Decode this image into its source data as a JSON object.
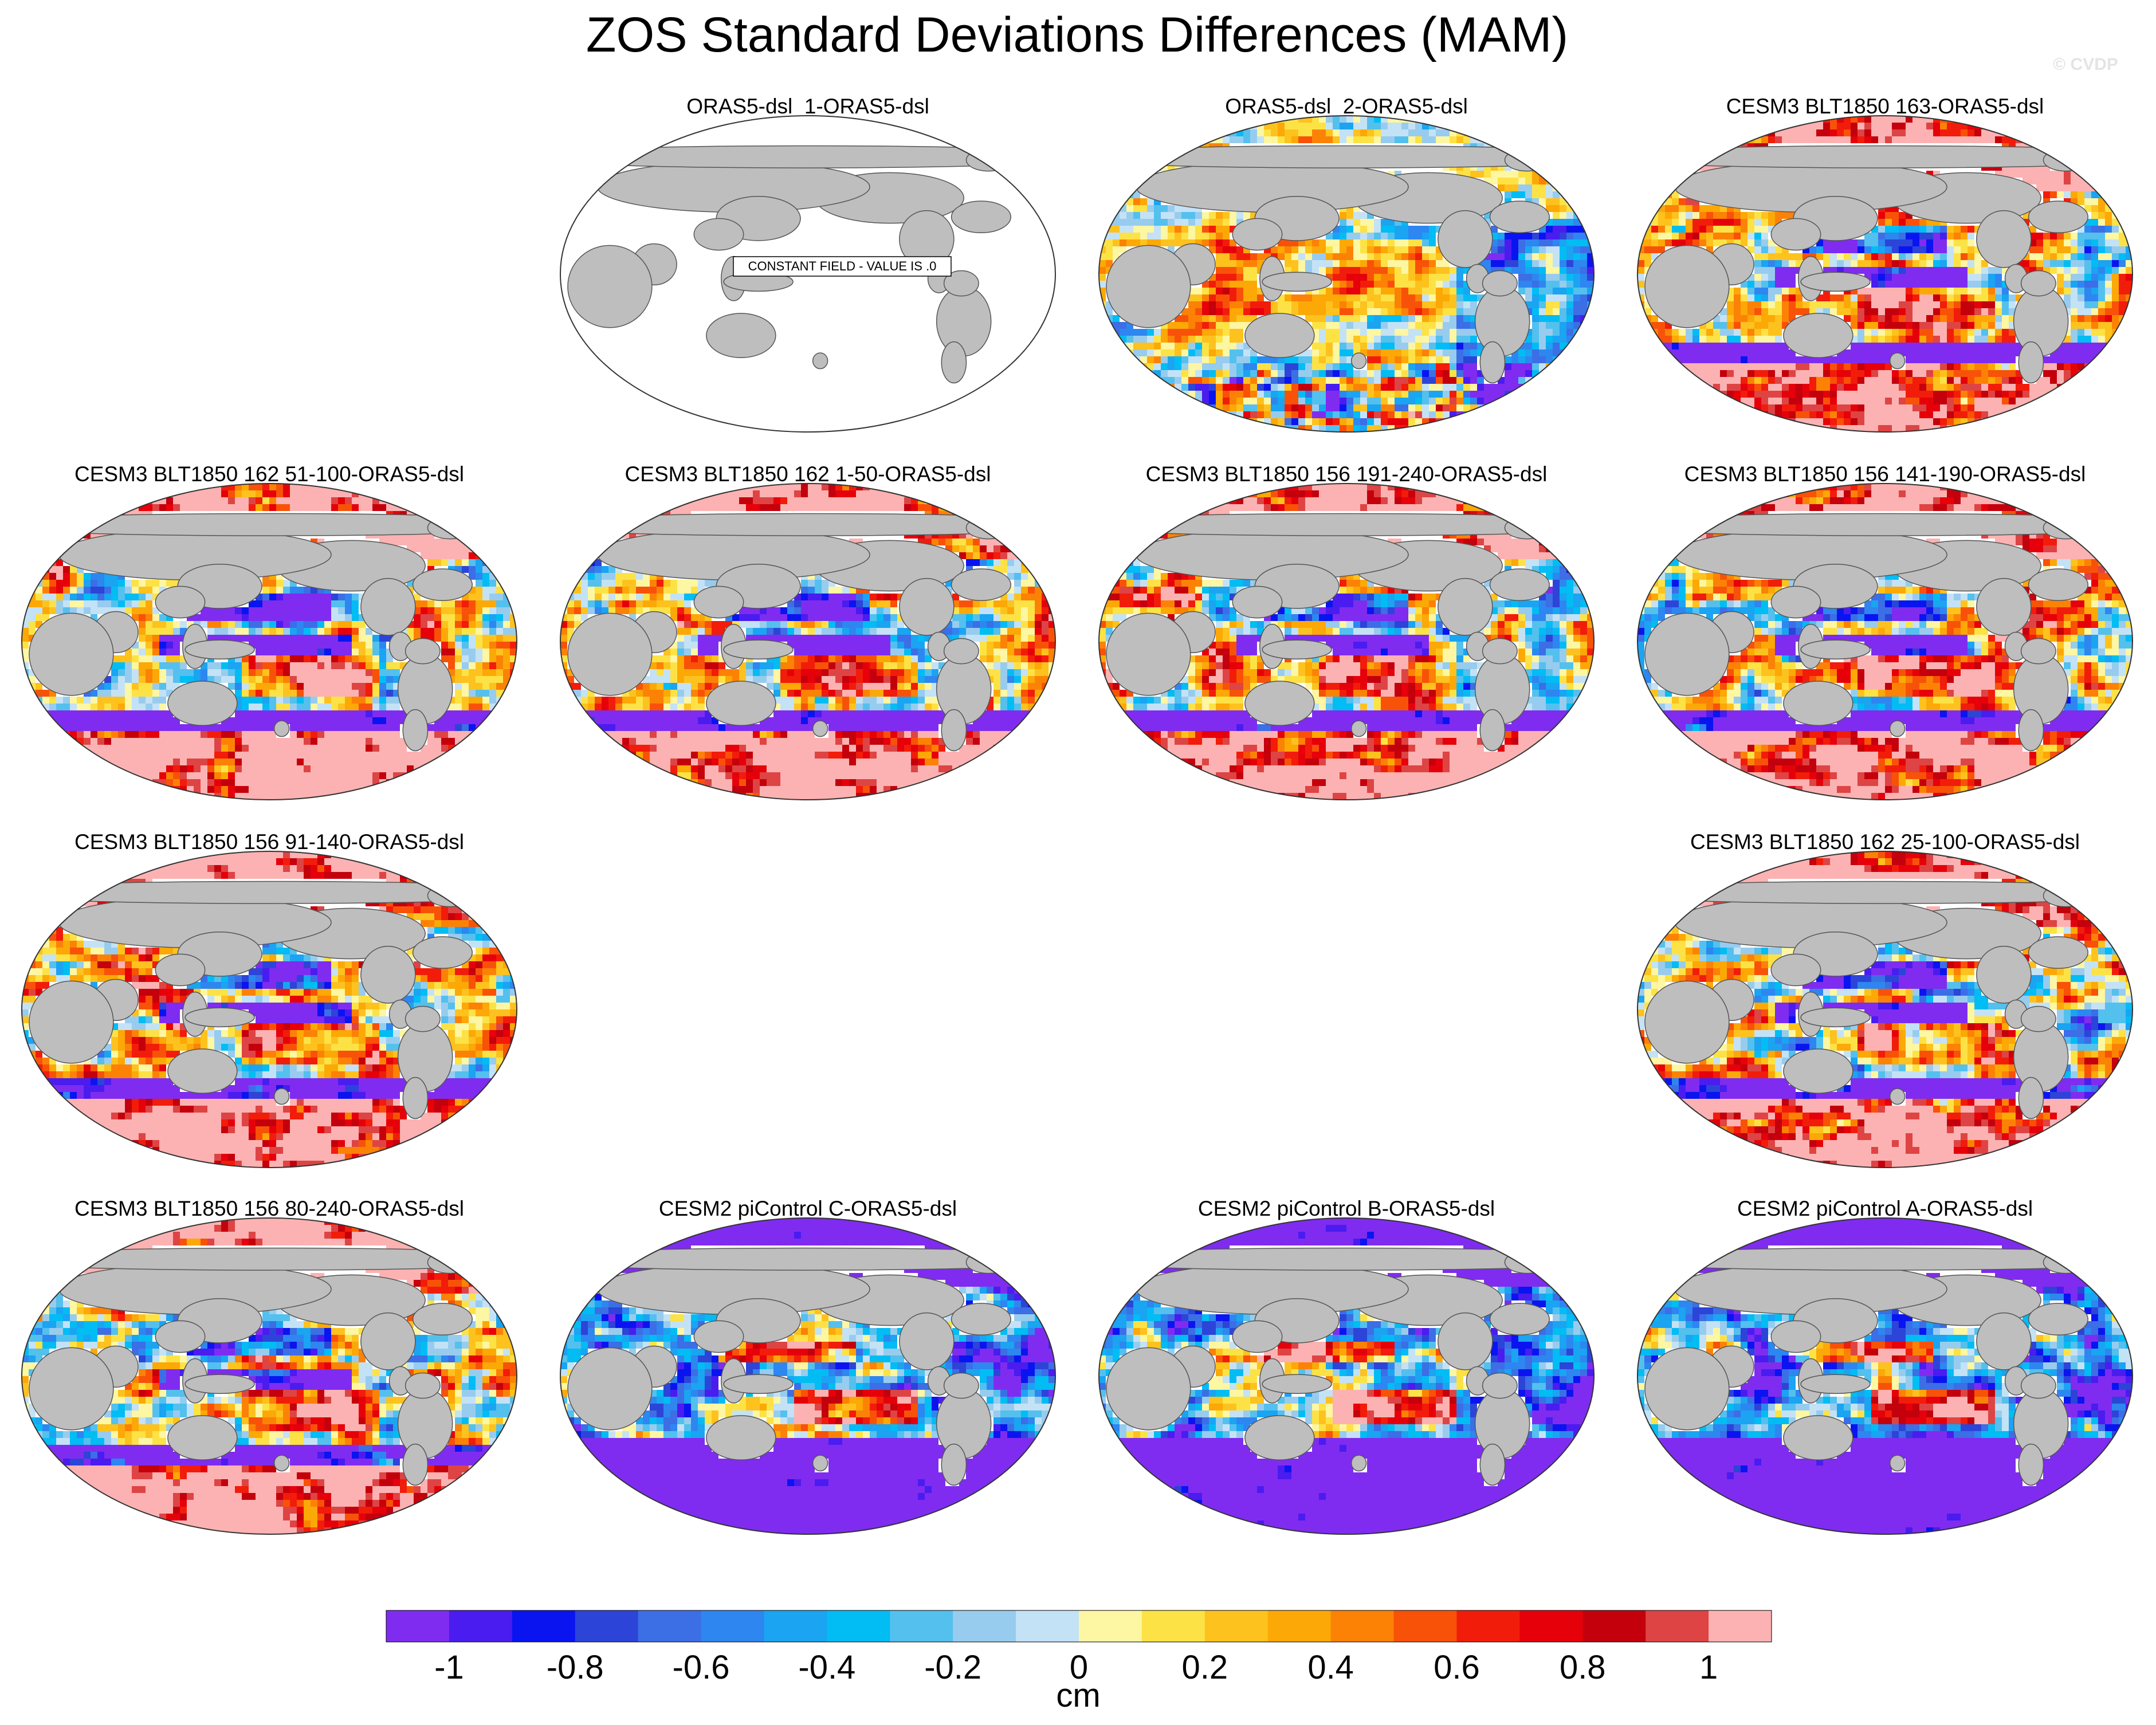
{
  "chart_data": {
    "type": "heatmap",
    "title": "ZOS Standard Deviations Differences (MAM)",
    "watermark": "© CVDP",
    "projection": "Robinson (Pacific-centered global maps)",
    "panels": [
      {
        "slot": "r1c2",
        "title": "ORAS5-dsl_1-ORAS5-dsl",
        "style": "constant",
        "note": "CONSTANT FIELD - VALUE IS .0"
      },
      {
        "slot": "r1c3",
        "title": "ORAS5-dsl_2-ORAS5-dsl",
        "style": "orasdiff"
      },
      {
        "slot": "r1c4",
        "title": "CESM3 BLT1850 163-ORAS5-dsl",
        "style": "cesm3"
      },
      {
        "slot": "r2c1",
        "title": "CESM3 BLT1850 162 51-100-ORAS5-dsl",
        "style": "cesm3"
      },
      {
        "slot": "r2c2",
        "title": "CESM3 BLT1850 162 1-50-ORAS5-dsl",
        "style": "cesm3"
      },
      {
        "slot": "r2c3",
        "title": "CESM3 BLT1850 156 191-240-ORAS5-dsl",
        "style": "cesm3"
      },
      {
        "slot": "r2c4",
        "title": "CESM3 BLT1850 156 141-190-ORAS5-dsl",
        "style": "cesm3"
      },
      {
        "slot": "r3c1",
        "title": "CESM3 BLT1850 156 91-140-ORAS5-dsl",
        "style": "cesm3"
      },
      {
        "slot": "r3c4",
        "title": "CESM3 BLT1850 162 25-100-ORAS5-dsl",
        "style": "cesm3"
      },
      {
        "slot": "r4c1",
        "title": "CESM3 BLT1850 156 80-240-ORAS5-dsl",
        "style": "cesm3"
      },
      {
        "slot": "r4c2",
        "title": "CESM2 piControl C-ORAS5-dsl",
        "style": "cesm2"
      },
      {
        "slot": "r4c3",
        "title": "CESM2 piControl B-ORAS5-dsl",
        "style": "cesm2"
      },
      {
        "slot": "r4c4",
        "title": "CESM2 piControl A-ORAS5-dsl",
        "style": "cesm2"
      }
    ],
    "colorbar": {
      "levels": [
        -1,
        -0.9,
        -0.8,
        -0.7,
        -0.6,
        -0.5,
        -0.4,
        -0.3,
        -0.2,
        -0.1,
        0,
        0.1,
        0.2,
        0.3,
        0.4,
        0.5,
        0.6,
        0.7,
        0.8,
        0.9,
        1
      ],
      "colors": [
        "#7f2cf0",
        "#4a1cf0",
        "#0a14f0",
        "#2c44d8",
        "#3c6ee6",
        "#2e86f0",
        "#1aa4f2",
        "#02bcf4",
        "#54c0ee",
        "#98ccee",
        "#c4e2f6",
        "#fdf6a2",
        "#fde246",
        "#fdc21e",
        "#fca806",
        "#fc8206",
        "#f85208",
        "#f21c0a",
        "#e6000a",
        "#c4000c",
        "#de4444",
        "#fcb2b2"
      ],
      "tick_labels": [
        "-1",
        "-0.8",
        "-0.6",
        "-0.4",
        "-0.2",
        "0",
        "0.2",
        "0.4",
        "0.6",
        "0.8",
        "1"
      ],
      "tick_values": [
        -1,
        -0.8,
        -0.6,
        -0.4,
        -0.2,
        0,
        0.2,
        0.4,
        0.6,
        0.8,
        1
      ],
      "unit": "cm"
    },
    "land_color": "#bebebe",
    "missing_color": "#ffffff"
  }
}
